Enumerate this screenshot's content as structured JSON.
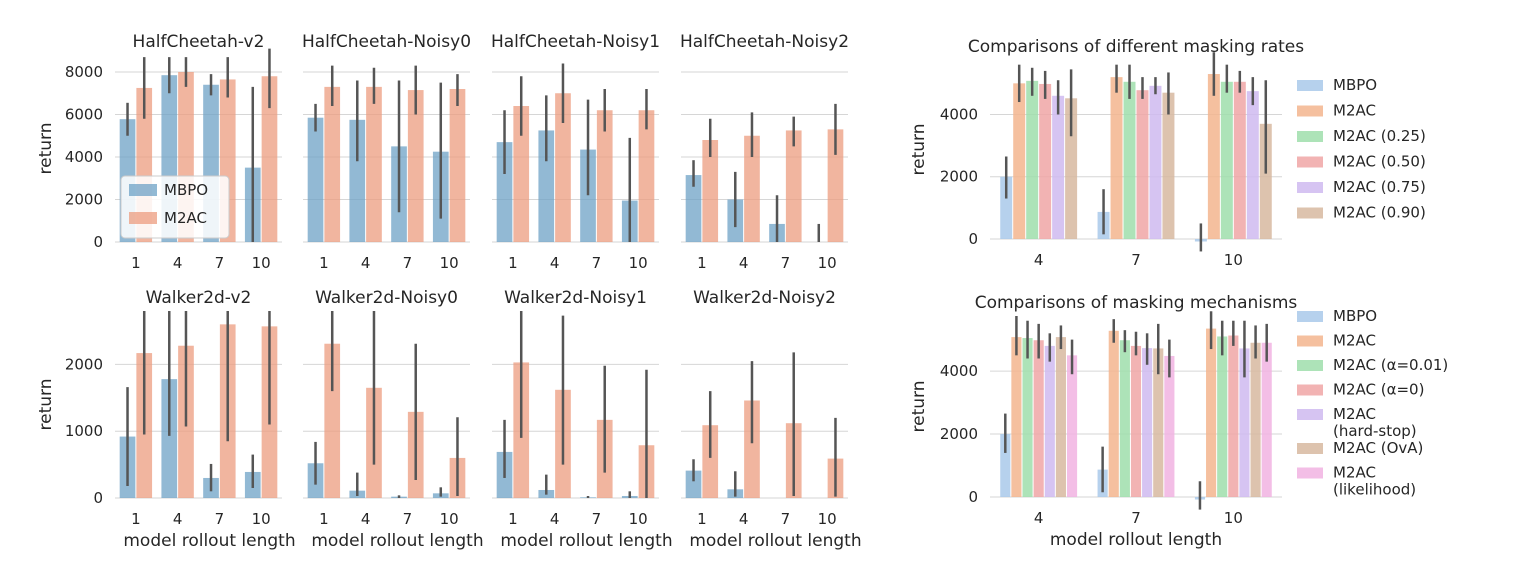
{
  "colors": {
    "mbpo": "#6ea1c6",
    "m2ac": "#ec9c7f",
    "errbar": "#555555",
    "grid": "#d6d6d6",
    "pal": [
      "#a9c9ea",
      "#f3b58e",
      "#9fdeab",
      "#f0a6a6",
      "#cfbaf0",
      "#d7b9a0",
      "#f1b3e2"
    ]
  },
  "labels": {
    "ylabel": "return",
    "xlabel": "model rollout length"
  },
  "chart_data": [
    {
      "type": "bar",
      "title": "HalfCheetah-v2",
      "categories": [
        "1",
        "4",
        "7",
        "10"
      ],
      "ylim": [
        0,
        8800
      ],
      "yticks": [
        0,
        2000,
        4000,
        6000,
        8000
      ],
      "ylabel": "return",
      "xlabel": "",
      "legend": {
        "entries": [
          "MBPO",
          "M2AC"
        ],
        "placement": "lower-left"
      },
      "series": [
        {
          "name": "MBPO",
          "values": [
            5780,
            7850,
            7400,
            3500
          ],
          "err_low": [
            5000,
            7000,
            6900,
            0
          ],
          "err_high": [
            6550,
            8700,
            7900,
            7300
          ]
        },
        {
          "name": "M2AC",
          "values": [
            7250,
            8000,
            7650,
            7800
          ],
          "err_low": [
            5800,
            7300,
            6800,
            6300
          ],
          "err_high": [
            8700,
            8700,
            8700,
            9100
          ]
        }
      ]
    },
    {
      "type": "bar",
      "title": "HalfCheetah-Noisy0",
      "categories": [
        "1",
        "4",
        "7",
        "10"
      ],
      "ylim": [
        0,
        8800
      ],
      "yticks": [
        0,
        2000,
        4000,
        6000,
        8000
      ],
      "ylabel": "",
      "xlabel": "",
      "series": [
        {
          "name": "MBPO",
          "values": [
            5850,
            5750,
            4500,
            4250
          ],
          "err_low": [
            5200,
            3800,
            1400,
            1100
          ],
          "err_high": [
            6500,
            7600,
            7600,
            7500
          ]
        },
        {
          "name": "M2AC",
          "values": [
            7300,
            7300,
            7150,
            7200
          ],
          "err_low": [
            6400,
            6500,
            6000,
            6400
          ],
          "err_high": [
            8300,
            8200,
            8300,
            7900
          ]
        }
      ]
    },
    {
      "type": "bar",
      "title": "HalfCheetah-Noisy1",
      "categories": [
        "1",
        "4",
        "7",
        "10"
      ],
      "ylim": [
        0,
        8800
      ],
      "yticks": [
        0,
        2000,
        4000,
        6000,
        8000
      ],
      "ylabel": "",
      "xlabel": "",
      "series": [
        {
          "name": "MBPO",
          "values": [
            4700,
            5250,
            4350,
            1950
          ],
          "err_low": [
            3200,
            3800,
            2200,
            0
          ],
          "err_high": [
            6200,
            6900,
            6700,
            4900
          ]
        },
        {
          "name": "M2AC",
          "values": [
            6400,
            7000,
            6200,
            6200
          ],
          "err_low": [
            5000,
            5600,
            5200,
            5300
          ],
          "err_high": [
            7800,
            8400,
            7200,
            7200
          ]
        }
      ]
    },
    {
      "type": "bar",
      "title": "HalfCheetah-Noisy2",
      "categories": [
        "1",
        "4",
        "7",
        "10"
      ],
      "ylim": [
        0,
        8800
      ],
      "yticks": [
        0,
        2000,
        4000,
        6000,
        8000
      ],
      "ylabel": "",
      "xlabel": "",
      "series": [
        {
          "name": "MBPO",
          "values": [
            3150,
            2000,
            850,
            0
          ],
          "err_low": [
            2600,
            700,
            0,
            0
          ],
          "err_high": [
            3850,
            3300,
            2200,
            850
          ]
        },
        {
          "name": "M2AC",
          "values": [
            4800,
            5000,
            5250,
            5300
          ],
          "err_low": [
            4000,
            4000,
            4500,
            4100
          ],
          "err_high": [
            5800,
            6100,
            5900,
            6500
          ]
        }
      ]
    },
    {
      "type": "bar",
      "title": "Walker2d-v2",
      "categories": [
        "1",
        "4",
        "7",
        "10"
      ],
      "ylim": [
        0,
        2800
      ],
      "yticks": [
        0,
        1000,
        2000
      ],
      "ylabel": "return",
      "xlabel": "model rollout length",
      "series": [
        {
          "name": "MBPO",
          "values": [
            920,
            1780,
            300,
            390
          ],
          "err_low": [
            180,
            930,
            100,
            150
          ],
          "err_high": [
            1660,
            2800,
            510,
            650
          ]
        },
        {
          "name": "M2AC",
          "values": [
            2170,
            2280,
            2600,
            2570
          ],
          "err_low": [
            950,
            1070,
            850,
            1100
          ],
          "err_high": [
            2800,
            2800,
            2800,
            2800
          ]
        }
      ]
    },
    {
      "type": "bar",
      "title": "Walker2d-Noisy0",
      "categories": [
        "1",
        "4",
        "7",
        "10"
      ],
      "ylim": [
        0,
        2800
      ],
      "yticks": [
        0,
        1000,
        2000
      ],
      "ylabel": "",
      "xlabel": "model rollout length",
      "series": [
        {
          "name": "MBPO",
          "values": [
            520,
            110,
            20,
            70
          ],
          "err_low": [
            200,
            30,
            0,
            20
          ],
          "err_high": [
            840,
            380,
            40,
            160
          ]
        },
        {
          "name": "M2AC",
          "values": [
            2310,
            1650,
            1290,
            600
          ],
          "err_low": [
            1600,
            500,
            270,
            30
          ],
          "err_high": [
            2800,
            2800,
            2310,
            1210
          ]
        }
      ]
    },
    {
      "type": "bar",
      "title": "Walker2d-Noisy1",
      "categories": [
        "1",
        "4",
        "7",
        "10"
      ],
      "ylim": [
        0,
        2800
      ],
      "yticks": [
        0,
        1000,
        2000
      ],
      "ylabel": "",
      "xlabel": "model rollout length",
      "series": [
        {
          "name": "MBPO",
          "values": [
            690,
            120,
            10,
            30
          ],
          "err_low": [
            300,
            50,
            0,
            0
          ],
          "err_high": [
            1170,
            350,
            30,
            100
          ]
        },
        {
          "name": "M2AC",
          "values": [
            2030,
            1620,
            1170,
            790
          ],
          "err_low": [
            900,
            500,
            380,
            0
          ],
          "err_high": [
            2800,
            2730,
            1980,
            1920
          ]
        }
      ]
    },
    {
      "type": "bar",
      "title": "Walker2d-Noisy2",
      "categories": [
        "1",
        "4",
        "7",
        "10"
      ],
      "ylim": [
        0,
        2800
      ],
      "yticks": [
        0,
        1000,
        2000
      ],
      "ylabel": "",
      "xlabel": "model rollout length",
      "series": [
        {
          "name": "MBPO",
          "values": [
            410,
            130,
            0,
            0
          ],
          "err_low": [
            250,
            20,
            0,
            0
          ],
          "err_high": [
            580,
            400,
            0,
            0
          ]
        },
        {
          "name": "M2AC",
          "values": [
            1090,
            1460,
            1120,
            590
          ],
          "err_low": [
            600,
            820,
            30,
            20
          ],
          "err_high": [
            1600,
            2050,
            2180,
            1200
          ]
        }
      ]
    },
    {
      "type": "bar",
      "title": "Comparisons of different masking rates",
      "categories": [
        "4",
        "7",
        "10"
      ],
      "ylim": [
        0,
        5750
      ],
      "yticks": [
        0,
        2000,
        4000
      ],
      "ylabel": "return",
      "xlabel": "",
      "legend": {
        "entries": [
          "MBPO",
          "M2AC",
          "M2AC (0.25)",
          "M2AC (0.50)",
          "M2AC (0.75)",
          "M2AC (0.90)"
        ],
        "placement": "right"
      },
      "series": [
        {
          "name": "MBPO",
          "values": [
            2000,
            870,
            -80
          ],
          "err_low": [
            1300,
            150,
            -400
          ],
          "err_high": [
            2650,
            1600,
            500
          ]
        },
        {
          "name": "M2AC",
          "values": [
            5000,
            5200,
            5300
          ],
          "err_low": [
            4400,
            4700,
            4600
          ],
          "err_high": [
            5600,
            5600,
            6000
          ]
        },
        {
          "name": "M2AC (0.25)",
          "values": [
            5080,
            5050,
            5050
          ],
          "err_low": [
            4600,
            4500,
            4700
          ],
          "err_high": [
            5500,
            5600,
            5600
          ]
        },
        {
          "name": "M2AC (0.50)",
          "values": [
            4980,
            4780,
            5050
          ],
          "err_low": [
            4500,
            4500,
            4700
          ],
          "err_high": [
            5400,
            5200,
            5400
          ]
        },
        {
          "name": "M2AC (0.75)",
          "values": [
            4600,
            4920,
            4750
          ],
          "err_low": [
            4000,
            4650,
            4300
          ],
          "err_high": [
            5100,
            5200,
            5200
          ]
        },
        {
          "name": "M2AC (0.90)",
          "values": [
            4520,
            4700,
            3700
          ],
          "err_low": [
            3300,
            4000,
            2100
          ],
          "err_high": [
            5450,
            5350,
            5100
          ]
        }
      ]
    },
    {
      "type": "bar",
      "title": "Comparisons of masking mechanisms",
      "categories": [
        "4",
        "7",
        "10"
      ],
      "ylim": [
        0,
        5750
      ],
      "yticks": [
        0,
        2000,
        4000
      ],
      "ylabel": "return",
      "xlabel": "model rollout length",
      "legend": {
        "entries": [
          "MBPO",
          "M2AC",
          "M2AC (α=0.01)",
          "M2AC (α=0)",
          "M2AC\n(hard-stop)",
          "M2AC (OvA)",
          "M2AC\n(likelihood)"
        ],
        "placement": "right"
      },
      "series": [
        {
          "name": "MBPO",
          "values": [
            2000,
            870,
            -80
          ],
          "err_low": [
            1400,
            150,
            -400
          ],
          "err_high": [
            2650,
            1600,
            500
          ]
        },
        {
          "name": "M2AC",
          "values": [
            5080,
            5280,
            5350
          ],
          "err_low": [
            4500,
            4900,
            4700
          ],
          "err_high": [
            5750,
            5650,
            5900
          ]
        },
        {
          "name": "M2AC (α=0.01)",
          "values": [
            5050,
            4980,
            5100
          ],
          "err_low": [
            4400,
            4600,
            4500
          ],
          "err_high": [
            5600,
            5300,
            5600
          ]
        },
        {
          "name": "M2AC (α=0)",
          "values": [
            4980,
            4800,
            5130
          ],
          "err_low": [
            4400,
            4500,
            4800
          ],
          "err_high": [
            5500,
            5250,
            5600
          ]
        },
        {
          "name": "M2AC\n(hard-stop)",
          "values": [
            4800,
            4730,
            4720
          ],
          "err_low": [
            4300,
            4200,
            3800
          ],
          "err_high": [
            5200,
            5200,
            5600
          ]
        },
        {
          "name": "M2AC (OvA)",
          "values": [
            5080,
            4720,
            4900
          ],
          "err_low": [
            4700,
            3900,
            4400
          ],
          "err_high": [
            5450,
            5500,
            5450
          ]
        },
        {
          "name": "M2AC\n(likelihood)",
          "values": [
            4500,
            4480,
            4900
          ],
          "err_low": [
            3900,
            3800,
            4300
          ],
          "err_high": [
            5000,
            5000,
            5500
          ]
        }
      ]
    }
  ]
}
